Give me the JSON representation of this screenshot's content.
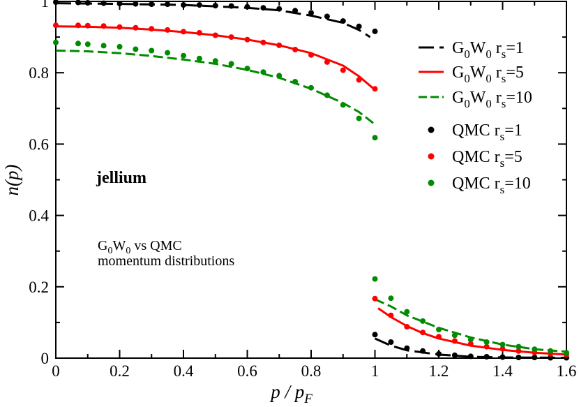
{
  "chart_data": {
    "type": "line",
    "title": "",
    "xlabel": {
      "main": "p / p",
      "sub": "F"
    },
    "ylabel": "n(p)",
    "xlim": [
      0,
      1.6
    ],
    "ylim": [
      0,
      1.0
    ],
    "xticks": [
      0,
      0.2,
      0.4,
      0.6,
      0.8,
      1,
      1.2,
      1.4,
      1.6
    ],
    "xtick_labels": [
      "0",
      "0.2",
      "0.4",
      "0.6",
      "0.8",
      "1",
      "1.2",
      "1.4",
      "1.6"
    ],
    "yticks": [
      0,
      0.2,
      0.4,
      0.6,
      0.8,
      1
    ],
    "ytick_labels": [
      "0",
      "0.2",
      "0.4",
      "0.6",
      "0.8",
      "1"
    ],
    "grid": false,
    "legend_position": "top-right",
    "colors": {
      "black": "#000000",
      "red": "#ff0000",
      "green": "#008b00"
    },
    "annotations": {
      "system": "jellium",
      "comparison_line1": {
        "g": "G",
        "s1": "0",
        "w": "W",
        "s2": "0",
        "rest": " vs QMC"
      },
      "comparison_line2": "momentum distributions"
    },
    "line_series": [
      {
        "id": "g0w0-rs1",
        "legend": {
          "g": "G",
          "s1": "0",
          "w": "W",
          "s2": "0",
          "r": " r",
          "s3": "s",
          "rest": "=1"
        },
        "color": "#000000",
        "dash": "long",
        "below": [
          [
            0,
            0.995
          ],
          [
            0.2,
            0.993
          ],
          [
            0.4,
            0.99
          ],
          [
            0.6,
            0.982
          ],
          [
            0.7,
            0.975
          ],
          [
            0.8,
            0.96
          ],
          [
            0.9,
            0.94
          ],
          [
            0.95,
            0.92
          ],
          [
            0.985,
            0.9
          ]
        ],
        "above": [
          [
            1.0,
            0.055
          ],
          [
            1.05,
            0.035
          ],
          [
            1.1,
            0.022
          ],
          [
            1.2,
            0.01
          ],
          [
            1.3,
            0.004
          ],
          [
            1.4,
            0.002
          ],
          [
            1.6,
            0.001
          ]
        ]
      },
      {
        "id": "g0w0-rs5",
        "legend": {
          "g": "G",
          "s1": "0",
          "w": "W",
          "s2": "0",
          "r": " r",
          "s3": "s",
          "rest": "=5"
        },
        "color": "#ff0000",
        "dash": "solid",
        "below": [
          [
            0,
            0.93
          ],
          [
            0.1,
            0.929
          ],
          [
            0.2,
            0.926
          ],
          [
            0.3,
            0.921
          ],
          [
            0.4,
            0.914
          ],
          [
            0.5,
            0.905
          ],
          [
            0.6,
            0.893
          ],
          [
            0.7,
            0.877
          ],
          [
            0.8,
            0.855
          ],
          [
            0.9,
            0.82
          ],
          [
            0.95,
            0.79
          ],
          [
            1.0,
            0.752
          ]
        ],
        "above": [
          [
            1.01,
            0.14
          ],
          [
            1.05,
            0.115
          ],
          [
            1.1,
            0.09
          ],
          [
            1.15,
            0.07
          ],
          [
            1.2,
            0.055
          ],
          [
            1.3,
            0.035
          ],
          [
            1.4,
            0.023
          ],
          [
            1.5,
            0.015
          ],
          [
            1.6,
            0.01
          ]
        ]
      },
      {
        "id": "g0w0-rs10",
        "legend": {
          "g": "G",
          "s1": "0",
          "w": "W",
          "s2": "0",
          "r": " r",
          "s3": "s",
          "rest": "=10"
        },
        "color": "#008b00",
        "dash": "medium",
        "below": [
          [
            0,
            0.862
          ],
          [
            0.1,
            0.86
          ],
          [
            0.2,
            0.855
          ],
          [
            0.3,
            0.847
          ],
          [
            0.4,
            0.837
          ],
          [
            0.5,
            0.825
          ],
          [
            0.6,
            0.808
          ],
          [
            0.7,
            0.786
          ],
          [
            0.8,
            0.755
          ],
          [
            0.9,
            0.715
          ],
          [
            0.95,
            0.69
          ],
          [
            1.0,
            0.655
          ]
        ],
        "above": [
          [
            1.0,
            0.165
          ],
          [
            1.05,
            0.145
          ],
          [
            1.1,
            0.12
          ],
          [
            1.2,
            0.085
          ],
          [
            1.3,
            0.058
          ],
          [
            1.4,
            0.038
          ],
          [
            1.5,
            0.025
          ],
          [
            1.6,
            0.018
          ]
        ]
      }
    ],
    "scatter_series": [
      {
        "id": "qmc-rs1",
        "legend": {
          "label": "QMC r",
          "sub": "s",
          "rest": "=1"
        },
        "color": "#000000",
        "points": [
          [
            0,
            0.998
          ],
          [
            0.07,
            0.997
          ],
          [
            0.1,
            0.996
          ],
          [
            0.15,
            0.995
          ],
          [
            0.2,
            0.994
          ],
          [
            0.25,
            0.993
          ],
          [
            0.3,
            0.992
          ],
          [
            0.35,
            0.992
          ],
          [
            0.4,
            0.99
          ],
          [
            0.45,
            0.99
          ],
          [
            0.5,
            0.988
          ],
          [
            0.55,
            0.987
          ],
          [
            0.6,
            0.985
          ],
          [
            0.65,
            0.982
          ],
          [
            0.7,
            0.979
          ],
          [
            0.75,
            0.974
          ],
          [
            0.8,
            0.968
          ],
          [
            0.85,
            0.958
          ],
          [
            0.9,
            0.945
          ],
          [
            0.95,
            0.93
          ],
          [
            1.0,
            0.916
          ],
          [
            1.0,
            0.066
          ],
          [
            1.05,
            0.045
          ],
          [
            1.1,
            0.028
          ],
          [
            1.15,
            0.02
          ],
          [
            1.2,
            0.012
          ],
          [
            1.25,
            0.008
          ],
          [
            1.3,
            0.005
          ],
          [
            1.35,
            0.004
          ],
          [
            1.4,
            0.003
          ],
          [
            1.45,
            0.002
          ],
          [
            1.5,
            0.002
          ],
          [
            1.55,
            0.001
          ],
          [
            1.6,
            0.001
          ]
        ]
      },
      {
        "id": "qmc-rs5",
        "legend": {
          "label": "QMC r",
          "sub": "s",
          "rest": "=5"
        },
        "color": "#ff0000",
        "points": [
          [
            0,
            0.933
          ],
          [
            0.07,
            0.933
          ],
          [
            0.1,
            0.932
          ],
          [
            0.15,
            0.931
          ],
          [
            0.2,
            0.928
          ],
          [
            0.25,
            0.926
          ],
          [
            0.3,
            0.923
          ],
          [
            0.35,
            0.92
          ],
          [
            0.4,
            0.915
          ],
          [
            0.45,
            0.912
          ],
          [
            0.5,
            0.905
          ],
          [
            0.55,
            0.9
          ],
          [
            0.6,
            0.893
          ],
          [
            0.65,
            0.885
          ],
          [
            0.7,
            0.877
          ],
          [
            0.75,
            0.865
          ],
          [
            0.8,
            0.85
          ],
          [
            0.85,
            0.83
          ],
          [
            0.9,
            0.807
          ],
          [
            0.95,
            0.78
          ],
          [
            1.0,
            0.755
          ],
          [
            1.0,
            0.167
          ],
          [
            1.05,
            0.12
          ],
          [
            1.1,
            0.088
          ],
          [
            1.15,
            0.072
          ],
          [
            1.2,
            0.06
          ],
          [
            1.25,
            0.048
          ],
          [
            1.3,
            0.04
          ],
          [
            1.35,
            0.032
          ],
          [
            1.4,
            0.026
          ],
          [
            1.45,
            0.02
          ],
          [
            1.5,
            0.016
          ],
          [
            1.55,
            0.012
          ],
          [
            1.6,
            0.01
          ]
        ]
      },
      {
        "id": "qmc-rs10",
        "legend": {
          "label": "QMC r",
          "sub": "s",
          "rest": "=10"
        },
        "color": "#008b00",
        "points": [
          [
            0,
            0.885
          ],
          [
            0.07,
            0.882
          ],
          [
            0.1,
            0.88
          ],
          [
            0.15,
            0.876
          ],
          [
            0.2,
            0.873
          ],
          [
            0.25,
            0.866
          ],
          [
            0.3,
            0.862
          ],
          [
            0.35,
            0.856
          ],
          [
            0.4,
            0.848
          ],
          [
            0.45,
            0.84
          ],
          [
            0.5,
            0.833
          ],
          [
            0.55,
            0.825
          ],
          [
            0.6,
            0.812
          ],
          [
            0.65,
            0.802
          ],
          [
            0.7,
            0.792
          ],
          [
            0.75,
            0.775
          ],
          [
            0.8,
            0.758
          ],
          [
            0.85,
            0.737
          ],
          [
            0.9,
            0.71
          ],
          [
            0.95,
            0.672
          ],
          [
            1.0,
            0.618
          ],
          [
            1.0,
            0.222
          ],
          [
            1.05,
            0.168
          ],
          [
            1.1,
            0.13
          ],
          [
            1.15,
            0.104
          ],
          [
            1.2,
            0.08
          ],
          [
            1.25,
            0.064
          ],
          [
            1.3,
            0.052
          ],
          [
            1.35,
            0.045
          ],
          [
            1.4,
            0.038
          ],
          [
            1.45,
            0.032
          ],
          [
            1.5,
            0.025
          ],
          [
            1.55,
            0.02
          ],
          [
            1.6,
            0.015
          ]
        ]
      }
    ]
  }
}
